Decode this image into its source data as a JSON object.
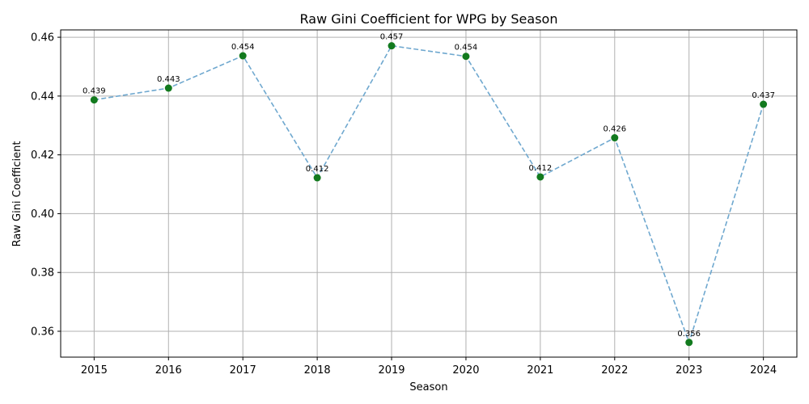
{
  "chart_data": {
    "type": "line",
    "title": "Raw Gini Coefficient for WPG by Season",
    "xlabel": "Season",
    "ylabel": "Raw Gini Coefficient",
    "x": [
      2015,
      2016,
      2017,
      2018,
      2019,
      2020,
      2021,
      2022,
      2023,
      2024
    ],
    "values": [
      0.4387,
      0.4427,
      0.4537,
      0.4122,
      0.4571,
      0.4535,
      0.4125,
      0.4258,
      0.3562,
      0.4372
    ],
    "point_labels": [
      "0.439",
      "0.443",
      "0.454",
      "0.412",
      "0.457",
      "0.454",
      "0.412",
      "0.426",
      "0.356",
      "0.437"
    ],
    "xlim": [
      2014.55,
      2024.45
    ],
    "ylim": [
      0.3512,
      0.4625
    ],
    "yticks": [
      0.36,
      0.38,
      0.4,
      0.42,
      0.44,
      0.46
    ],
    "ytick_labels": [
      "0.36",
      "0.38",
      "0.40",
      "0.42",
      "0.44",
      "0.46"
    ],
    "xtick_labels": [
      "2015",
      "2016",
      "2017",
      "2018",
      "2019",
      "2020",
      "2021",
      "2022",
      "2023",
      "2024"
    ],
    "grid": true,
    "line_color": "#6fa8cf",
    "point_color": "#127a1e"
  }
}
